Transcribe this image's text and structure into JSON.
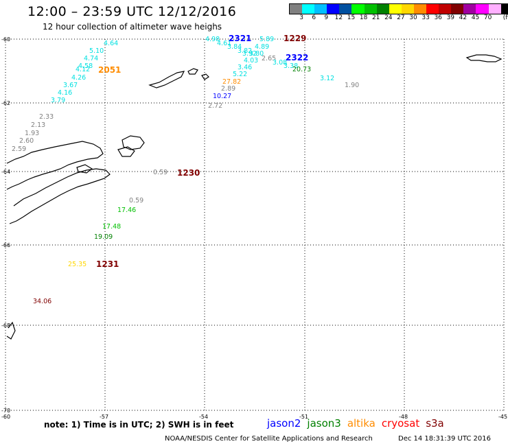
{
  "header": {
    "title": "12:00 – 23:59 UTC 12/12/2016",
    "subtitle": "12 hour collection of altimeter wave heighs"
  },
  "legend": {
    "unit": "(ft)",
    "colors": [
      "#808080",
      "#00ffff",
      "#00bfff",
      "#0000ff",
      "#0050a0",
      "#00ff00",
      "#00c000",
      "#008000",
      "#ffff00",
      "#ffd700",
      "#ff8c00",
      "#ff0000",
      "#c00000",
      "#800000",
      "#a000a0",
      "#ff00ff",
      "#ffb0ff",
      "#000000"
    ],
    "ticks": [
      "3",
      "6",
      "9",
      "12",
      "15",
      "18",
      "21",
      "24",
      "27",
      "30",
      "33",
      "36",
      "39",
      "42",
      "45",
      "70"
    ]
  },
  "axes": {
    "lat_labels": [
      "-60",
      "-62",
      "-64",
      "-66",
      "-68",
      "-70"
    ],
    "lon_labels": [
      "-60",
      "-57",
      "-54",
      "-51",
      "-48",
      "-45"
    ]
  },
  "observations": [
    {
      "v": "4.64",
      "c": "#00e0e0"
    },
    {
      "v": "5.10",
      "c": "#00e0e0"
    },
    {
      "v": "4.74",
      "c": "#00e0e0"
    },
    {
      "v": "4.58",
      "c": "#00e0e0"
    },
    {
      "v": "4.12",
      "c": "#00e0e0"
    },
    {
      "v": "4.26",
      "c": "#00e0e0"
    },
    {
      "v": "3.67",
      "c": "#00e0e0"
    },
    {
      "v": "4.16",
      "c": "#00e0e0"
    },
    {
      "v": "3.79",
      "c": "#00e0e0"
    },
    {
      "v": "2.33",
      "c": "#808080"
    },
    {
      "v": "2.13",
      "c": "#808080"
    },
    {
      "v": "1.93",
      "c": "#808080"
    },
    {
      "v": "2.60",
      "c": "#808080"
    },
    {
      "v": "2.59",
      "c": "#808080"
    },
    {
      "v": "4.98",
      "c": "#00e0e0"
    },
    {
      "v": "4.61",
      "c": "#00e0e0"
    },
    {
      "v": "3.84",
      "c": "#00e0e0"
    },
    {
      "v": "3.82",
      "c": "#00e0e0"
    },
    {
      "v": "3.92",
      "c": "#00e0e0"
    },
    {
      "v": "3.80",
      "c": "#00e0e0"
    },
    {
      "v": "5.89",
      "c": "#00e0e0"
    },
    {
      "v": "4.89",
      "c": "#00e0e0"
    },
    {
      "v": "4.03",
      "c": "#00e0e0"
    },
    {
      "v": "3.46",
      "c": "#00e0e0"
    },
    {
      "v": "5.22",
      "c": "#00e0e0"
    },
    {
      "v": "2.65",
      "c": "#808080"
    },
    {
      "v": "3.08",
      "c": "#00e0e0"
    },
    {
      "v": "3.38",
      "c": "#00e0e0"
    },
    {
      "v": "20.73",
      "c": "#008000"
    },
    {
      "v": "3.12",
      "c": "#00e0e0"
    },
    {
      "v": "1.90",
      "c": "#808080"
    },
    {
      "v": "27.82",
      "c": "#ff8c00"
    },
    {
      "v": "2.89",
      "c": "#808080"
    },
    {
      "v": "10.27",
      "c": "#0000ff"
    },
    {
      "v": "2.72",
      "c": "#808080"
    },
    {
      "v": "0.59",
      "c": "#808080"
    },
    {
      "v": "0.59",
      "c": "#808080"
    },
    {
      "v": "17.46",
      "c": "#00c000"
    },
    {
      "v": "17.48",
      "c": "#00c000"
    },
    {
      "v": "19.09",
      "c": "#008000"
    },
    {
      "v": "25.35",
      "c": "#ffd700"
    },
    {
      "v": "34.06",
      "c": "#800000"
    }
  ],
  "passes": [
    {
      "t": "2051",
      "c": "#ff8c00"
    },
    {
      "t": "2321",
      "c": "#0000ff"
    },
    {
      "t": "1229",
      "c": "#800000"
    },
    {
      "t": "2322",
      "c": "#0000ff"
    },
    {
      "t": "1230",
      "c": "#800000"
    },
    {
      "t": "1231",
      "c": "#800000"
    }
  ],
  "footer": {
    "note": "note: 1) Time is in UTC; 2) SWH is in feet",
    "satellites": [
      {
        "name": "jason2",
        "color": "#0000ff"
      },
      {
        "name": "jason3",
        "color": "#008000"
      },
      {
        "name": "altika",
        "color": "#ff8c00"
      },
      {
        "name": "cryosat",
        "color": "#ff0000"
      },
      {
        "name": "s3a",
        "color": "#800000"
      }
    ],
    "credit": "NOAA/NESDIS Center for Satellite Applications and Research",
    "timestamp": "Dec 14 18:31:39 UTC 2016"
  }
}
